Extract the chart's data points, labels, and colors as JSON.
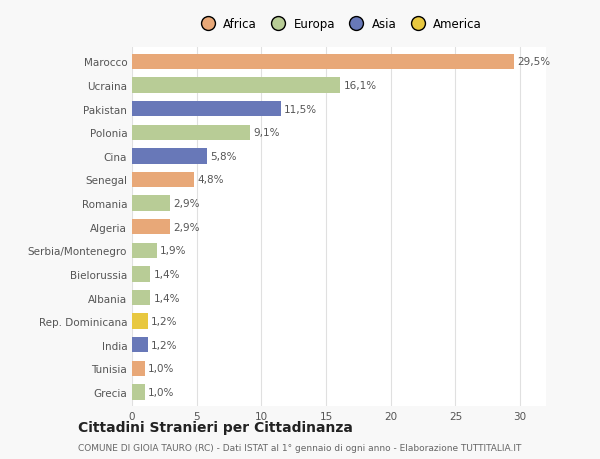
{
  "categories": [
    "Grecia",
    "Tunisia",
    "India",
    "Rep. Dominicana",
    "Albania",
    "Bielorussia",
    "Serbia/Montenegro",
    "Algeria",
    "Romania",
    "Senegal",
    "Cina",
    "Polonia",
    "Pakistan",
    "Ucraina",
    "Marocco"
  ],
  "values": [
    1.0,
    1.0,
    1.2,
    1.2,
    1.4,
    1.4,
    1.9,
    2.9,
    2.9,
    4.8,
    5.8,
    9.1,
    11.5,
    16.1,
    29.5
  ],
  "labels": [
    "1,0%",
    "1,0%",
    "1,2%",
    "1,2%",
    "1,4%",
    "1,4%",
    "1,9%",
    "2,9%",
    "2,9%",
    "4,8%",
    "5,8%",
    "9,1%",
    "11,5%",
    "16,1%",
    "29,5%"
  ],
  "colors": [
    "#b8cc96",
    "#e8a878",
    "#6878b8",
    "#e8c840",
    "#b8cc96",
    "#b8cc96",
    "#b8cc96",
    "#e8a878",
    "#b8cc96",
    "#e8a878",
    "#6878b8",
    "#b8cc96",
    "#6878b8",
    "#b8cc96",
    "#e8a878"
  ],
  "legend_labels": [
    "Africa",
    "Europa",
    "Asia",
    "America"
  ],
  "legend_colors": [
    "#e8a878",
    "#b8cc96",
    "#6878b8",
    "#e8c840"
  ],
  "title": "Cittadini Stranieri per Cittadinanza",
  "subtitle": "COMUNE DI GIOIA TAURO (RC) - Dati ISTAT al 1° gennaio di ogni anno - Elaborazione TUTTITALIA.IT",
  "xlim": [
    0,
    32
  ],
  "xticks": [
    0,
    5,
    10,
    15,
    20,
    25,
    30
  ],
  "bar_height": 0.65,
  "background_color": "#f8f8f8",
  "plot_bg_color": "#ffffff",
  "grid_color": "#e0e0e0",
  "label_fontsize": 7.5,
  "tick_fontsize": 7.5,
  "title_fontsize": 10,
  "subtitle_fontsize": 6.5,
  "legend_fontsize": 8.5
}
